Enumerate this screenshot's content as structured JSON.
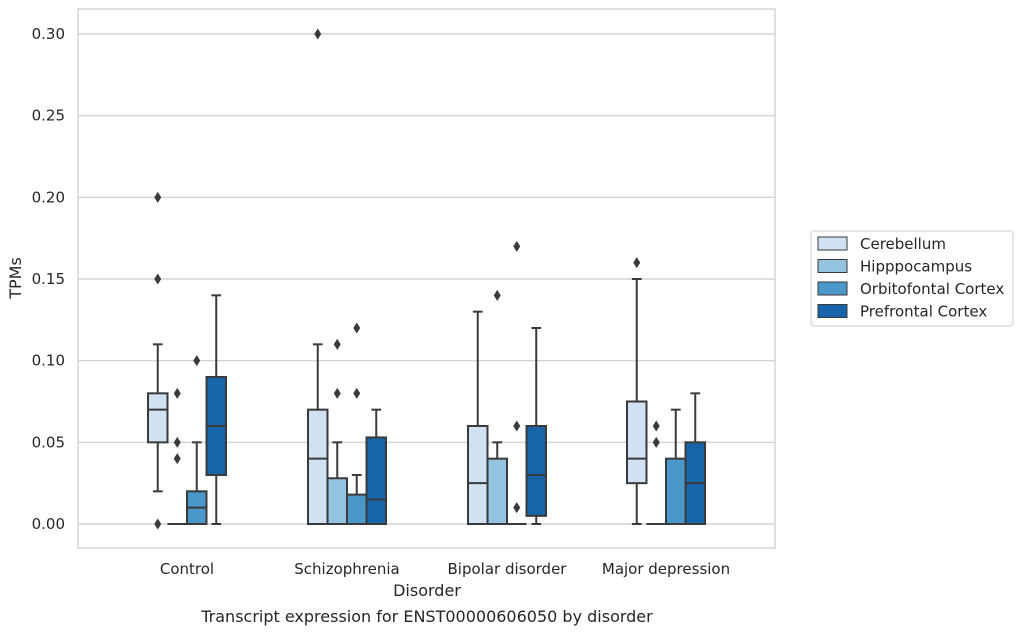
{
  "chart_data": {
    "type": "box",
    "title": "",
    "xlabel": "Disorder",
    "ylabel": "TPMs",
    "caption": "Transcript expression for ENST00000606050 by disorder",
    "ylim": [
      -0.015,
      0.315
    ],
    "yticks": [
      0.0,
      0.05,
      0.1,
      0.15,
      0.2,
      0.25,
      0.3
    ],
    "ytick_labels": [
      "0.00",
      "0.05",
      "0.10",
      "0.15",
      "0.20",
      "0.25",
      "0.30"
    ],
    "grid": "horizontal",
    "legend_position": "right",
    "categories": [
      "Control",
      "Schizophrenia",
      "Bipolar disorder",
      "Major depression"
    ],
    "series": [
      {
        "name": "Cerebellum",
        "color": "#d0e1f2",
        "boxes": [
          {
            "whisker_low": 0.02,
            "q1": 0.05,
            "median": 0.07,
            "q3": 0.08,
            "whisker_high": 0.11,
            "outliers": [
              0.0,
              0.15,
              0.2
            ]
          },
          {
            "whisker_low": 0.0,
            "q1": 0.0,
            "median": 0.04,
            "q3": 0.07,
            "whisker_high": 0.11,
            "outliers": [
              0.3
            ]
          },
          {
            "whisker_low": 0.0,
            "q1": 0.0,
            "median": 0.025,
            "q3": 0.06,
            "whisker_high": 0.13,
            "outliers": []
          },
          {
            "whisker_low": 0.0,
            "q1": 0.025,
            "median": 0.04,
            "q3": 0.075,
            "whisker_high": 0.15,
            "outliers": [
              0.16
            ]
          }
        ]
      },
      {
        "name": "Hipppocampus",
        "color": "#94c4df",
        "boxes": [
          {
            "whisker_low": 0.0,
            "q1": 0.0,
            "median": 0.0,
            "q3": 0.0,
            "whisker_high": 0.0,
            "outliers": [
              0.04,
              0.05,
              0.08
            ]
          },
          {
            "whisker_low": 0.0,
            "q1": 0.0,
            "median": 0.0,
            "q3": 0.028,
            "whisker_high": 0.05,
            "outliers": [
              0.08,
              0.11
            ]
          },
          {
            "whisker_low": 0.0,
            "q1": 0.0,
            "median": 0.0,
            "q3": 0.04,
            "whisker_high": 0.05,
            "outliers": [
              0.14
            ]
          },
          {
            "whisker_low": 0.0,
            "q1": 0.0,
            "median": 0.0,
            "q3": 0.0,
            "whisker_high": 0.0,
            "outliers": [
              0.05,
              0.06
            ]
          }
        ]
      },
      {
        "name": "Orbitofontal Cortex",
        "color": "#4a98c9",
        "boxes": [
          {
            "whisker_low": 0.0,
            "q1": 0.0,
            "median": 0.01,
            "q3": 0.02,
            "whisker_high": 0.05,
            "outliers": [
              0.1
            ]
          },
          {
            "whisker_low": 0.0,
            "q1": 0.0,
            "median": 0.0,
            "q3": 0.018,
            "whisker_high": 0.03,
            "outliers": [
              0.08,
              0.12
            ]
          },
          {
            "whisker_low": 0.0,
            "q1": 0.0,
            "median": 0.0,
            "q3": 0.0,
            "whisker_high": 0.0,
            "outliers": [
              0.01,
              0.06,
              0.17
            ]
          },
          {
            "whisker_low": 0.0,
            "q1": 0.0,
            "median": 0.0,
            "q3": 0.04,
            "whisker_high": 0.07,
            "outliers": []
          }
        ]
      },
      {
        "name": "Prefrontal Cortex",
        "color": "#1764ab",
        "boxes": [
          {
            "whisker_low": 0.0,
            "q1": 0.03,
            "median": 0.06,
            "q3": 0.09,
            "whisker_high": 0.14,
            "outliers": []
          },
          {
            "whisker_low": 0.0,
            "q1": 0.0,
            "median": 0.015,
            "q3": 0.053,
            "whisker_high": 0.07,
            "outliers": []
          },
          {
            "whisker_low": 0.0,
            "q1": 0.005,
            "median": 0.03,
            "q3": 0.06,
            "whisker_high": 0.12,
            "outliers": []
          },
          {
            "whisker_low": 0.0,
            "q1": 0.0,
            "median": 0.025,
            "q3": 0.05,
            "whisker_high": 0.08,
            "outliers": []
          }
        ]
      }
    ]
  }
}
